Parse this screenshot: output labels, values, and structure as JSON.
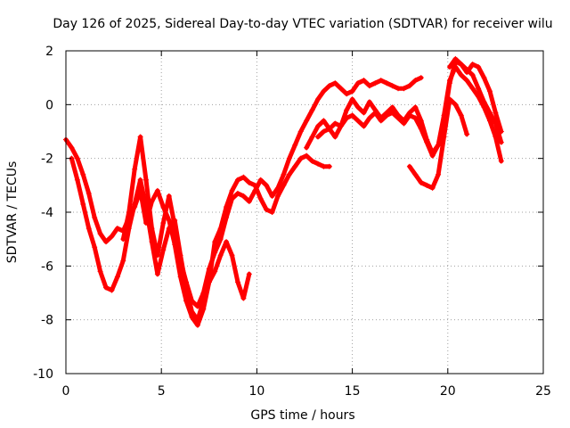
{
  "chart_data": {
    "type": "scatter",
    "title": "Day 126 of 2025, Sidereal Day-to-day VTEC variation (SDTVAR) for receiver wilu",
    "xlabel": "GPS time / hours",
    "ylabel": "SDTVAR / TECUs",
    "xlim": [
      0,
      25
    ],
    "ylim": [
      -10,
      2
    ],
    "xticks": [
      0,
      5,
      10,
      15,
      20,
      25
    ],
    "xtick_labels": [
      "0",
      "5",
      "10",
      "15",
      "20",
      "25"
    ],
    "yticks": [
      -10,
      -8,
      -6,
      -4,
      -2,
      0,
      2
    ],
    "ytick_labels": [
      "-10",
      "-8",
      "-6",
      "-4",
      "-2",
      "0",
      "2"
    ],
    "grid": true,
    "marker": "+",
    "color": "#ff0000",
    "series": [
      {
        "name": "trace-1",
        "x": [
          0,
          0.3,
          0.6,
          0.9,
          1.2,
          1.5,
          1.8,
          2.1,
          2.4,
          2.7,
          3.0,
          3.3,
          3.6,
          3.9,
          4.2,
          4.5,
          4.8,
          5.1,
          5.4,
          5.7,
          6.0,
          6.3,
          6.6,
          6.9,
          7.2,
          7.5,
          7.8,
          8.1,
          8.4,
          8.7,
          9.0,
          9.3,
          9.6,
          9.9,
          10.2,
          10.5,
          10.8,
          11.1,
          11.4,
          11.7,
          12.0,
          12.3,
          12.6,
          12.9,
          13.2,
          13.5,
          13.8
        ],
        "y": [
          -1.3,
          -1.6,
          -2.0,
          -2.6,
          -3.3,
          -4.2,
          -4.8,
          -5.1,
          -4.9,
          -4.6,
          -4.7,
          -4.2,
          -3.8,
          -3.2,
          -4.4,
          -3.6,
          -3.2,
          -3.8,
          -4.3,
          -5.2,
          -6.4,
          -7.3,
          -7.9,
          -8.2,
          -7.6,
          -6.6,
          -5.1,
          -4.6,
          -3.8,
          -3.2,
          -2.8,
          -2.7,
          -2.9,
          -3.0,
          -3.5,
          -3.9,
          -4.0,
          -3.4,
          -3.0,
          -2.6,
          -2.3,
          -2.0,
          -1.9,
          -2.1,
          -2.2,
          -2.3,
          -2.3
        ]
      },
      {
        "name": "trace-2",
        "x": [
          0.3,
          0.6,
          0.9,
          1.2,
          1.5,
          1.8,
          2.1,
          2.4,
          2.7,
          3.0,
          3.3,
          3.6,
          3.9,
          4.2,
          4.5,
          4.8,
          5.1,
          5.4,
          5.7,
          6.0,
          6.3,
          6.6,
          6.9,
          7.2,
          7.5,
          7.8,
          8.1,
          8.4,
          8.7,
          9.0,
          9.3,
          9.6
        ],
        "y": [
          -2.0,
          -2.8,
          -3.7,
          -4.6,
          -5.3,
          -6.2,
          -6.8,
          -6.9,
          -6.4,
          -5.8,
          -4.6,
          -3.7,
          -2.8,
          -3.8,
          -5.1,
          -6.3,
          -5.4,
          -4.6,
          -4.3,
          -5.6,
          -6.8,
          -7.7,
          -8.0,
          -7.3,
          -6.6,
          -6.2,
          -5.6,
          -5.1,
          -5.6,
          -6.6,
          -7.2,
          -6.3
        ]
      },
      {
        "name": "trace-3",
        "x": [
          3.0,
          3.3,
          3.6,
          3.9,
          4.2,
          4.5,
          4.8,
          5.1,
          5.4,
          5.7,
          6.0,
          6.3,
          6.6,
          6.9,
          7.2,
          7.5,
          7.8,
          8.1,
          8.4,
          8.7,
          9.0,
          9.3,
          9.6,
          9.9,
          10.2,
          10.5,
          10.8,
          11.1,
          11.4,
          11.7,
          12.0,
          12.3,
          12.6,
          12.9,
          13.2,
          13.5,
          13.8,
          14.1,
          14.4,
          14.7,
          15.0,
          15.3,
          15.6,
          15.9,
          16.2,
          16.5,
          16.8,
          17.1,
          17.4,
          17.7,
          18.0,
          18.3,
          18.6
        ],
        "y": [
          -5.0,
          -4.0,
          -2.4,
          -1.2,
          -2.8,
          -4.6,
          -5.6,
          -4.4,
          -3.4,
          -4.5,
          -5.8,
          -6.6,
          -7.3,
          -7.5,
          -7.0,
          -6.1,
          -5.5,
          -5.0,
          -4.2,
          -3.5,
          -3.3,
          -3.4,
          -3.6,
          -3.2,
          -2.8,
          -3.0,
          -3.4,
          -3.1,
          -2.6,
          -2.0,
          -1.5,
          -1.0,
          -0.6,
          -0.2,
          0.2,
          0.5,
          0.7,
          0.8,
          0.6,
          0.4,
          0.5,
          0.8,
          0.9,
          0.7,
          0.8,
          0.9,
          0.8,
          0.7,
          0.6,
          0.6,
          0.7,
          0.9,
          1.0
        ]
      },
      {
        "name": "trace-4",
        "x": [
          12.6,
          12.9,
          13.2,
          13.5,
          13.8,
          14.1,
          14.4,
          14.7,
          15.0,
          15.3,
          15.6,
          15.9,
          16.2,
          16.5,
          16.8,
          17.1,
          17.4,
          17.7,
          18.0,
          18.3,
          18.6,
          18.9,
          19.2,
          19.5,
          19.8,
          20.1,
          20.4,
          20.7,
          21.0,
          21.3,
          21.6,
          21.9,
          22.2,
          22.5,
          22.8
        ],
        "y": [
          -1.6,
          -1.2,
          -0.8,
          -0.6,
          -0.9,
          -1.2,
          -0.8,
          -0.2,
          0.2,
          -0.1,
          -0.3,
          0.1,
          -0.2,
          -0.5,
          -0.3,
          -0.1,
          -0.4,
          -0.6,
          -0.3,
          -0.1,
          -0.6,
          -1.3,
          -1.8,
          -1.5,
          -0.4,
          0.9,
          1.4,
          1.1,
          0.9,
          0.6,
          0.3,
          -0.1,
          -0.6,
          -1.2,
          -2.1
        ]
      },
      {
        "name": "trace-5",
        "x": [
          13.2,
          13.5,
          13.8,
          14.1,
          14.4,
          14.7,
          15.0,
          15.3,
          15.6,
          15.9,
          16.2,
          16.5,
          16.8,
          17.1,
          17.4,
          17.7,
          18.0,
          18.3,
          18.6,
          18.9,
          19.2,
          19.5,
          19.8,
          20.1,
          20.4,
          20.7,
          21.0,
          21.3,
          21.6,
          21.9,
          22.2,
          22.5,
          22.8
        ],
        "y": [
          -1.2,
          -1.0,
          -0.9,
          -0.7,
          -0.8,
          -0.5,
          -0.4,
          -0.6,
          -0.8,
          -0.5,
          -0.3,
          -0.6,
          -0.4,
          -0.3,
          -0.5,
          -0.7,
          -0.4,
          -0.5,
          -0.9,
          -1.4,
          -1.9,
          -1.5,
          -0.6,
          0.8,
          1.6,
          1.5,
          1.3,
          1.1,
          0.6,
          0.1,
          -0.3,
          -0.7,
          -1.4
        ]
      },
      {
        "name": "trace-6",
        "x": [
          18.0,
          18.3,
          18.6,
          18.9,
          19.2,
          19.5,
          19.8,
          20.1,
          20.4,
          20.7,
          21.0
        ],
        "y": [
          -2.3,
          -2.6,
          -2.9,
          -3.0,
          -3.1,
          -2.6,
          -1.2,
          0.2,
          0.0,
          -0.4,
          -1.1
        ]
      },
      {
        "name": "trace-7",
        "x": [
          20.1,
          20.4,
          20.7,
          21.0,
          21.3,
          21.6,
          21.9,
          22.2,
          22.5,
          22.8
        ],
        "y": [
          1.4,
          1.7,
          1.5,
          1.2,
          1.5,
          1.4,
          1.0,
          0.5,
          -0.3,
          -1.0
        ]
      }
    ]
  }
}
